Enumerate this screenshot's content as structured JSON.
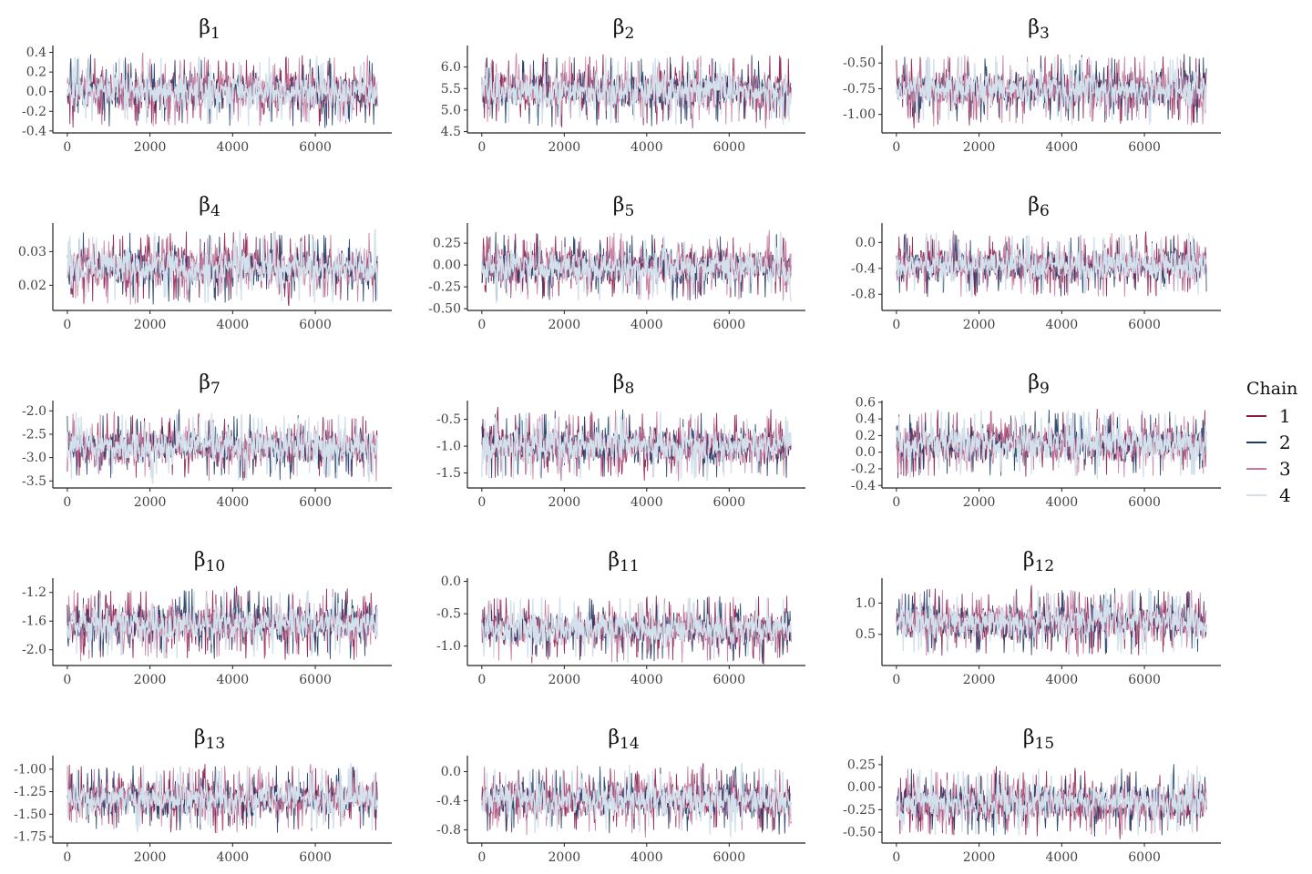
{
  "chart_data": {
    "type": "line",
    "x": {
      "ticks": [
        0,
        2000,
        4000,
        6000
      ],
      "range": [
        -350,
        7850
      ],
      "iterations": 7500
    },
    "panels": [
      {
        "title_base": "β",
        "title_sub": "1",
        "ticks": [
          0.4,
          0.2,
          0.0,
          -0.2,
          -0.4
        ],
        "tick_labels": [
          "0.4",
          "0.2",
          "0.0",
          "-0.2",
          "-0.4"
        ],
        "ylim": [
          -0.42,
          0.47
        ],
        "center": 0.0,
        "spread": 0.31
      },
      {
        "title_base": "β",
        "title_sub": "2",
        "ticks": [
          6.0,
          5.5,
          5.0,
          4.5
        ],
        "tick_labels": [
          "6.0",
          "5.5",
          "5.0",
          "4.5"
        ],
        "ylim": [
          4.47,
          6.5
        ],
        "center": 5.45,
        "spread": 0.7
      },
      {
        "title_base": "β",
        "title_sub": "3",
        "ticks": [
          -0.5,
          -0.75,
          -1.0
        ],
        "tick_labels": [
          "-0.50",
          "-0.75",
          "-1.00"
        ],
        "ylim": [
          -1.18,
          -0.33
        ],
        "center": -0.76,
        "spread": 0.3
      },
      {
        "title_base": "β",
        "title_sub": "4",
        "ticks": [
          0.03,
          0.02
        ],
        "tick_labels": [
          "0.03",
          "0.02"
        ],
        "ylim": [
          0.0125,
          0.0385
        ],
        "center": 0.0252,
        "spread": 0.0092
      },
      {
        "title_base": "β",
        "title_sub": "5",
        "ticks": [
          0.25,
          0.0,
          -0.25,
          -0.5
        ],
        "tick_labels": [
          "0.25",
          "0.00",
          "-0.25",
          "-0.50"
        ],
        "ylim": [
          -0.52,
          0.48
        ],
        "center": -0.02,
        "spread": 0.33
      },
      {
        "title_base": "β",
        "title_sub": "6",
        "ticks": [
          0.0,
          -0.4,
          -0.8
        ],
        "tick_labels": [
          "0.0",
          "-0.4",
          "-0.8"
        ],
        "ylim": [
          -1.05,
          0.3
        ],
        "center": -0.35,
        "spread": 0.42
      },
      {
        "title_base": "β",
        "title_sub": "7",
        "ticks": [
          -2.0,
          -2.5,
          -3.0,
          -3.5
        ],
        "tick_labels": [
          "-2.0",
          "-2.5",
          "-3.0",
          "-3.5"
        ],
        "ylim": [
          -3.65,
          -1.78
        ],
        "center": -2.77,
        "spread": 0.62
      },
      {
        "title_base": "β",
        "title_sub": "8",
        "ticks": [
          -0.5,
          -1.0,
          -1.5
        ],
        "tick_labels": [
          "-0.5",
          "-1.0",
          "-1.5"
        ],
        "ylim": [
          -1.78,
          -0.15
        ],
        "center": -0.99,
        "spread": 0.55
      },
      {
        "title_base": "β",
        "title_sub": "9",
        "ticks": [
          0.6,
          0.4,
          0.2,
          0.0,
          -0.2,
          -0.4
        ],
        "tick_labels": [
          "0.6",
          "0.4",
          "0.2",
          "0.0",
          "-0.2",
          "-0.4"
        ],
        "ylim": [
          -0.43,
          0.62
        ],
        "center": 0.1,
        "spread": 0.35
      },
      {
        "title_base": "β",
        "title_sub": "10",
        "ticks": [
          -1.2,
          -1.6,
          -2.0
        ],
        "tick_labels": [
          "-1.2",
          "-1.6",
          "-2.0"
        ],
        "ylim": [
          -2.22,
          -1.0
        ],
        "center": -1.64,
        "spread": 0.42
      },
      {
        "title_base": "β",
        "title_sub": "11",
        "ticks": [
          0.0,
          -0.5,
          -1.0
        ],
        "tick_labels": [
          "0.0",
          "-0.5",
          "-1.0"
        ],
        "ylim": [
          -1.3,
          0.05
        ],
        "center": -0.74,
        "spread": 0.44
      },
      {
        "title_base": "β",
        "title_sub": "12",
        "ticks": [
          1.0,
          0.5
        ],
        "tick_labels": [
          "1.0",
          "0.5"
        ],
        "ylim": [
          0.0,
          1.4
        ],
        "center": 0.69,
        "spread": 0.46
      },
      {
        "title_base": "β",
        "title_sub": "13",
        "ticks": [
          -1.0,
          -1.25,
          -1.5,
          -1.75
        ],
        "tick_labels": [
          "-1.00",
          "-1.25",
          "-1.50",
          "-1.75"
        ],
        "ylim": [
          -1.82,
          -0.85
        ],
        "center": -1.33,
        "spread": 0.32
      },
      {
        "title_base": "β",
        "title_sub": "14",
        "ticks": [
          0.0,
          -0.4,
          -0.8
        ],
        "tick_labels": [
          "0.0",
          "-0.4",
          "-0.8"
        ],
        "ylim": [
          -0.98,
          0.22
        ],
        "center": -0.39,
        "spread": 0.4
      },
      {
        "title_base": "β",
        "title_sub": "15",
        "ticks": [
          0.25,
          0.0,
          -0.25,
          -0.5
        ],
        "tick_labels": [
          "0.25",
          "0.00",
          "-0.25",
          "-0.50"
        ],
        "ylim": [
          -0.62,
          0.35
        ],
        "center": -0.17,
        "spread": 0.33
      }
    ],
    "series": [
      {
        "name": "1",
        "color": "#8b1a4a"
      },
      {
        "name": "2",
        "color": "#1f3b66"
      },
      {
        "name": "3",
        "color": "#c47a9e"
      },
      {
        "name": "4",
        "color": "#d3e1ec"
      }
    ],
    "legend": {
      "title": "Chain",
      "position": "right"
    },
    "grid": false
  }
}
